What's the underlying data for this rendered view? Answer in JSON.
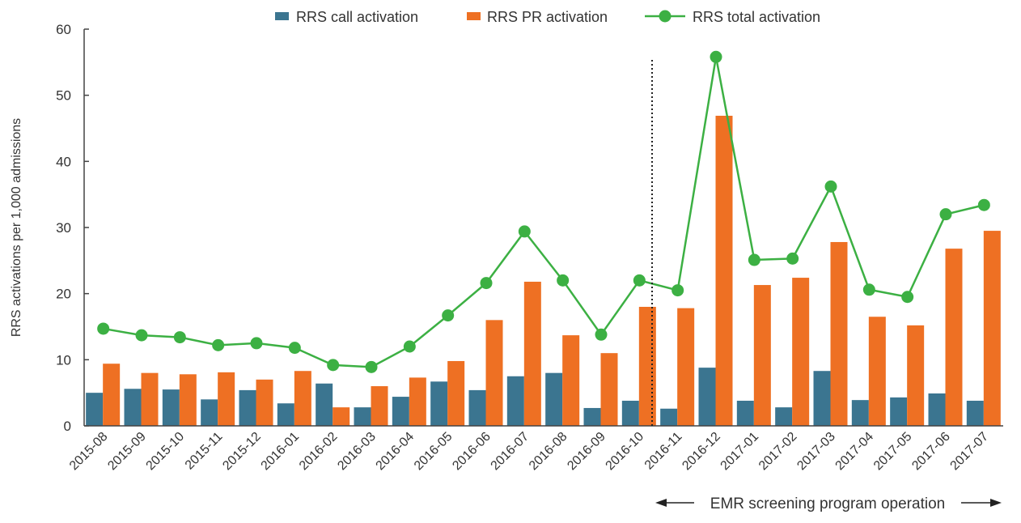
{
  "chart_data": {
    "type": "bar",
    "title": "",
    "xlabel": "",
    "ylabel": "RRS activations per 1,000 admissions",
    "ylim": [
      0,
      60
    ],
    "yticks": [
      0,
      10,
      20,
      30,
      40,
      50,
      60
    ],
    "legend_position": "top",
    "categories": [
      "2015-08",
      "2015-09",
      "2015-10",
      "2015-11",
      "2015-12",
      "2016-01",
      "2016-02",
      "2016-03",
      "2016-04",
      "2016-05",
      "2016-06",
      "2016-07",
      "2016-08",
      "2016-09",
      "2016-10",
      "2016-11",
      "2016-12",
      "2017-01",
      "2017-02",
      "2017-03",
      "2017-04",
      "2017-05",
      "2017-06",
      "2017-07"
    ],
    "series": [
      {
        "name": "RRS call activation",
        "kind": "bar",
        "color": "#3b7590",
        "values": [
          5.0,
          5.6,
          5.5,
          4.0,
          5.4,
          3.4,
          6.4,
          2.8,
          4.4,
          6.7,
          5.4,
          7.5,
          8.0,
          2.7,
          3.8,
          2.6,
          8.8,
          3.8,
          2.8,
          8.3,
          3.9,
          4.3,
          4.9,
          3.8
        ]
      },
      {
        "name": "RRS PR activation",
        "kind": "bar",
        "color": "#ee7023",
        "values": [
          9.4,
          8.0,
          7.8,
          8.1,
          7.0,
          8.3,
          2.8,
          6.0,
          7.3,
          9.8,
          16.0,
          21.8,
          13.7,
          11.0,
          18.0,
          17.8,
          46.9,
          21.3,
          22.4,
          27.8,
          16.5,
          15.2,
          26.8,
          29.5
        ]
      },
      {
        "name": "RRS total activation",
        "kind": "line",
        "color": "#3cb043",
        "values": [
          14.7,
          13.7,
          13.4,
          12.2,
          12.5,
          11.8,
          9.2,
          8.9,
          12.0,
          16.7,
          21.6,
          29.4,
          22.0,
          13.8,
          22.0,
          20.5,
          55.8,
          25.1,
          25.3,
          36.2,
          20.6,
          19.5,
          32.0,
          33.4
        ]
      }
    ],
    "annotation": {
      "divider_after": "2016-10",
      "text": "EMR screening program operation"
    }
  }
}
